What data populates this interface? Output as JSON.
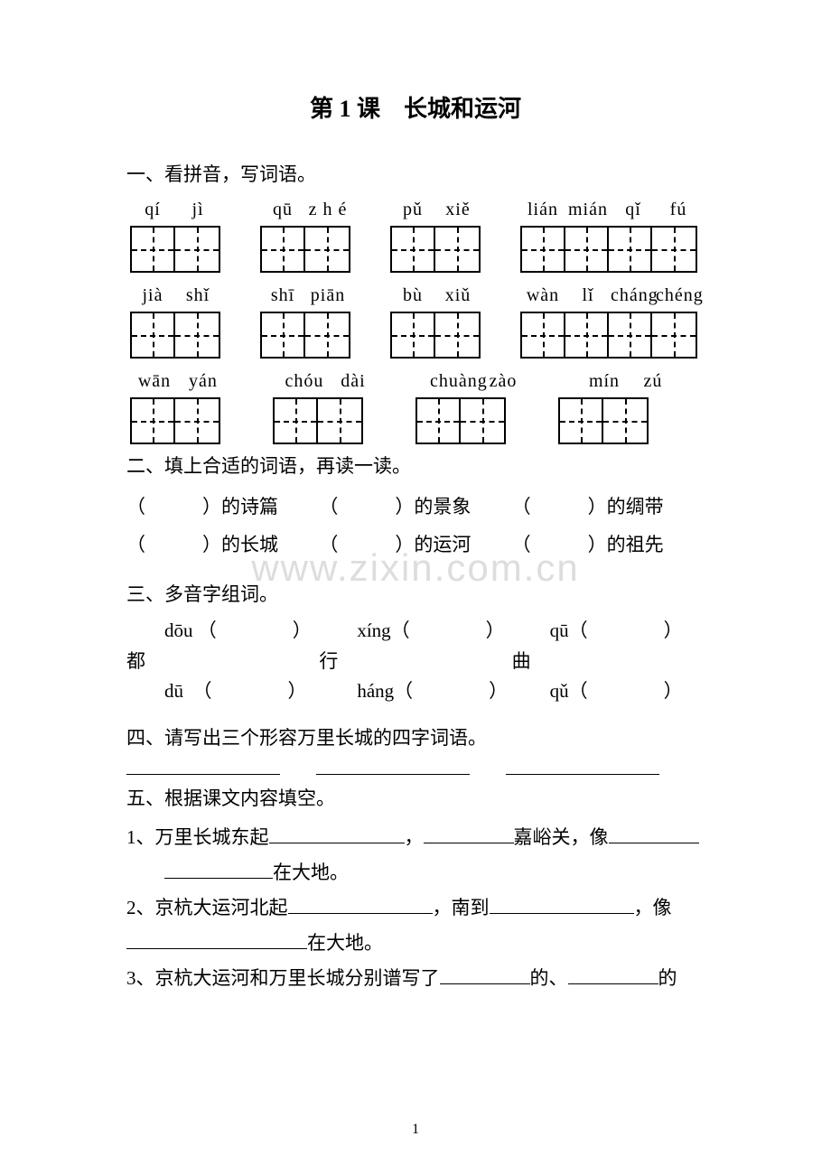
{
  "title": "第 1 课　长城和运河",
  "watermark": "www.zixin.com.cn",
  "pageNumber": "1",
  "section1": {
    "heading": "一、看拼音，写词语。",
    "rows": [
      {
        "pinyin": [
          [
            "qí",
            "jì"
          ],
          [
            "qū",
            "z h é"
          ],
          [
            "pǔ",
            "xiě"
          ],
          [
            "lián",
            "mián",
            "qǐ",
            "fú"
          ]
        ],
        "boxes": [
          2,
          2,
          2,
          4
        ],
        "gap": 44,
        "sylWidth": 50
      },
      {
        "pinyin": [
          [
            "jià",
            "shǐ"
          ],
          [
            "shī",
            "piān"
          ],
          [
            "bù",
            "xiǔ"
          ],
          [
            "wàn",
            "lǐ",
            "cháng",
            "chéng"
          ]
        ],
        "boxes": [
          2,
          2,
          2,
          4
        ],
        "gap": 44,
        "sylWidth": 50
      },
      {
        "pinyin": [
          [
            "wān",
            "yán"
          ],
          [
            "chóu",
            "dài"
          ],
          [
            "chuàng",
            "zào"
          ],
          [
            "mín",
            "zú"
          ]
        ],
        "boxes": [
          2,
          2,
          2,
          2
        ],
        "gap": 58,
        "sylWidth": 54
      }
    ]
  },
  "section2": {
    "heading": "二、填上合适的词语，再读一读。",
    "items": [
      [
        "（　　　）的诗篇",
        "（　　　）的景象",
        "（　　　）的绸带"
      ],
      [
        "（　　　）的长城",
        "（　　　）的运河",
        "（　　　）的祖先"
      ]
    ]
  },
  "section3": {
    "heading": "三、多音字组词。",
    "cols": [
      {
        "char": "都",
        "r1": "dōu （　　　　）",
        "r2": "dū　（　　　　）"
      },
      {
        "char": "行",
        "r1": "xíng（　　　　）",
        "r2": "háng（　　　　）"
      },
      {
        "char": "曲",
        "r1": "qū（　　　　）",
        "r2": "qǔ（　　　　）"
      }
    ]
  },
  "section4": {
    "heading": "四、请写出三个形容万里长城的四字词语。"
  },
  "section5": {
    "heading": "五、根据课文内容填空。",
    "q1a": "1、万里长城东起",
    "q1b": "，",
    "q1c": "嘉峪关，像",
    "q1d": "在大地。",
    "q2a": "2、京杭大运河北起",
    "q2b": "，南到",
    "q2c": "，像",
    "q2d": "在大地。",
    "q3a": "3、京杭大运河和万里长城分别谱写了",
    "q3b": "的、",
    "q3c": "的"
  },
  "style": {
    "pageWidth": 920,
    "pageHeight": 1300,
    "bgColor": "#ffffff",
    "textColor": "#000000",
    "watermarkColor": "#dddddd",
    "titleFontSize": 26,
    "bodyFontSize": 21,
    "boxSize": 48,
    "boxBorder": 2.5,
    "fontFamily": "SimSun"
  }
}
